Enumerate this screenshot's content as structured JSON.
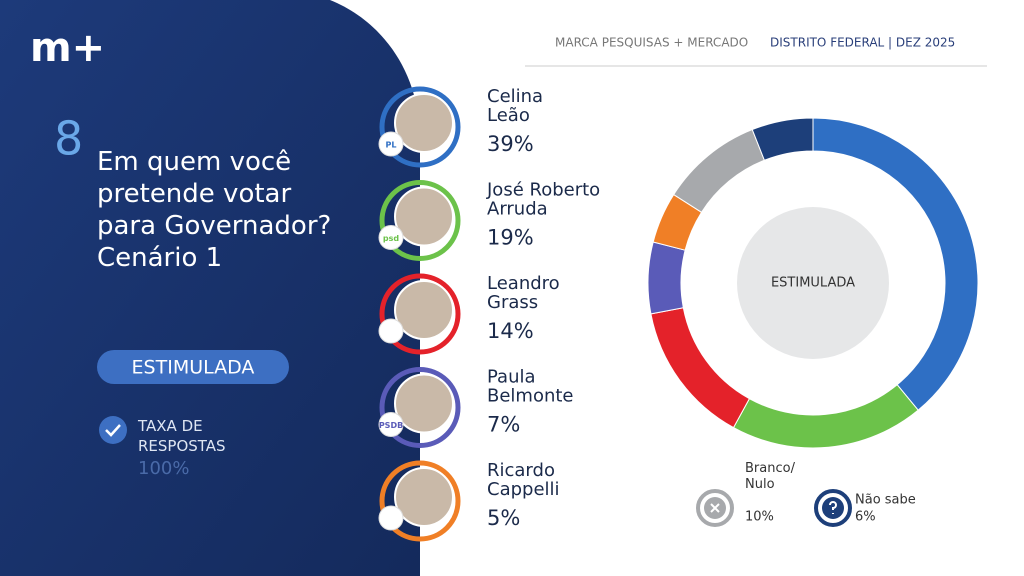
{
  "logo": "m+",
  "header": {
    "source": "MARCA PESQUISAS + MERCADO",
    "scope": "DISTRITO FEDERAL |  DEZ 2025"
  },
  "question": {
    "number": "8",
    "text": "Em quem você\npretende votar\npara Governador?\nCenário 1",
    "badge": "ESTIMULADA"
  },
  "response_rate": {
    "label": "TAXA DE\nRESPOSTAS",
    "value": "100%"
  },
  "chart_data": {
    "type": "pie",
    "donut": true,
    "center_label": "ESTIMULADA",
    "categories": [
      "Celina\nLeão",
      "José Roberto\nArruda",
      "Leandro\nGrass",
      "Paula\nBelmonte",
      "Ricardo\nCappelli",
      "Branco/\nNulo",
      "Não sabe"
    ],
    "values": [
      39,
      19,
      14,
      7,
      5,
      10,
      6
    ],
    "value_labels": [
      "39%",
      "19%",
      "14%",
      "7%",
      "5%",
      "10%",
      "6%"
    ],
    "colors": [
      "#2f6fc4",
      "#6cc24a",
      "#e4222a",
      "#5a5bb8",
      "#f07f26",
      "#a7a9ac",
      "#1d3f7a"
    ],
    "parties": [
      "PL",
      "psd",
      null,
      "PSDB",
      null
    ]
  }
}
